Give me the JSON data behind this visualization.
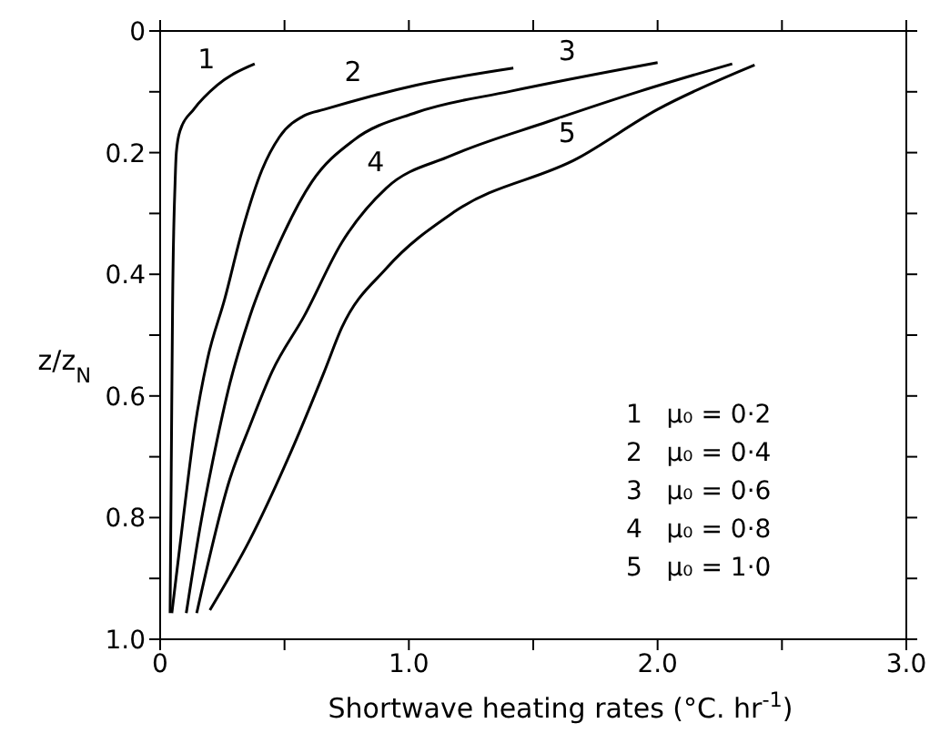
{
  "chart_data": {
    "type": "line",
    "xlabel": "Shortwave heating rates (°C. hr$^{-1}$)",
    "ylabel": "z/z$_{N}$",
    "xlim": [
      0,
      3
    ],
    "ylim": [
      1,
      0
    ],
    "xticks": [
      0,
      {
        "value": 0.5,
        "label": null
      },
      {
        "value": 1,
        "label": "1.0"
      },
      {
        "value": 1.5,
        "label": null
      },
      {
        "value": 2,
        "label": "2.0"
      },
      {
        "value": 2.5,
        "label": null
      },
      {
        "value": 3,
        "label": "3.0"
      }
    ],
    "yticks": [
      0,
      {
        "value": 0.1,
        "label": null
      },
      {
        "value": 0.2,
        "label": "0.2"
      },
      {
        "value": 0.3,
        "label": null
      },
      {
        "value": 0.4,
        "label": "0.4"
      },
      {
        "value": 0.5,
        "label": null
      },
      {
        "value": 0.6,
        "label": "0.6"
      },
      {
        "value": 0.7,
        "label": null
      },
      {
        "value": 0.8,
        "label": "0.8"
      },
      {
        "value": 0.9,
        "label": null
      },
      {
        "value": 1,
        "label": "1.0"
      }
    ],
    "grid": false,
    "marker": "none",
    "line_style": "solid",
    "series": [
      {
        "color": "#000000",
        "x": [
          0.04,
          0.045,
          0.05,
          0.06,
          0.065,
          0.08,
          0.135,
          0.23,
          0.38
        ],
        "values": [
          0.957,
          0.7,
          0.45,
          0.25,
          0.2,
          0.164,
          0.129,
          0.089,
          0.054
        ]
      },
      {
        "color": "#000000",
        "x": [
          0.047,
          0.097,
          0.14,
          0.19,
          0.26,
          0.33,
          0.41,
          0.48,
          0.58,
          0.66,
          1.03,
          1.42
        ],
        "values": [
          0.957,
          0.787,
          0.65,
          0.54,
          0.44,
          0.328,
          0.228,
          0.174,
          0.139,
          0.129,
          0.089,
          0.061
        ]
      },
      {
        "color": "#000000",
        "x": [
          0.105,
          0.16,
          0.22,
          0.28,
          0.36,
          0.48,
          0.61,
          0.78,
          1.03,
          1.41,
          2.0
        ],
        "values": [
          0.957,
          0.817,
          0.69,
          0.58,
          0.47,
          0.348,
          0.248,
          0.179,
          0.134,
          0.099,
          0.052
        ]
      },
      {
        "color": "#000000",
        "x": [
          0.147,
          0.28,
          0.36,
          0.45,
          0.58,
          0.73,
          0.91,
          1.17,
          1.56,
          1.93,
          2.3
        ],
        "values": [
          0.957,
          0.737,
          0.65,
          0.56,
          0.468,
          0.348,
          0.258,
          0.205,
          0.149,
          0.099,
          0.054
        ]
      },
      {
        "color": "#000000",
        "x": [
          0.2,
          0.36,
          0.53,
          0.66,
          0.73,
          0.91,
          1.18,
          1.68,
          2.0,
          2.39
        ],
        "values": [
          0.952,
          0.837,
          0.688,
          0.56,
          0.488,
          0.39,
          0.298,
          0.209,
          0.129,
          0.056
        ]
      }
    ],
    "annotations": [
      {
        "text": "1",
        "x": 0.23,
        "y": 0.089
      },
      {
        "text": "2",
        "x": 0.82,
        "y": 0.11
      },
      {
        "text": "3",
        "x": 1.68,
        "y": 0.075
      },
      {
        "text": "4",
        "x": 0.91,
        "y": 0.258
      },
      {
        "text": "5",
        "x": 1.68,
        "y": 0.209
      },
      "1   μ₀ = 0·2",
      "2   μ₀ = 0·4",
      "3   μ₀ = 0·6",
      "4   μ₀ = 0·8",
      "5   μ₀ = 1·0"
    ]
  }
}
